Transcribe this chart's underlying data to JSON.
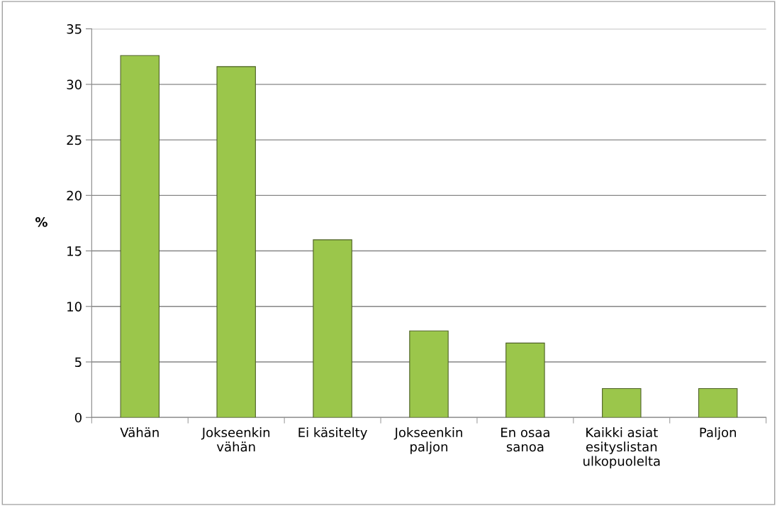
{
  "chart_data": {
    "type": "bar",
    "ylabel": "%",
    "categories": [
      "Vähän",
      "Jokseenkin\nvähän",
      "Ei käsitelty",
      "Jokseenkin\npaljon",
      "En osaa\nsanoa",
      "Kaikki asiat\nesityslistan\nulkopuolelta",
      "Paljon"
    ],
    "values": [
      32.6,
      31.6,
      16.0,
      7.8,
      6.7,
      2.6,
      2.6
    ],
    "color": "#9bc64b",
    "ylim": [
      0,
      35
    ],
    "yticks": [
      0,
      5,
      10,
      15,
      20,
      25,
      30,
      35
    ],
    "grid": "y",
    "legend": false
  }
}
